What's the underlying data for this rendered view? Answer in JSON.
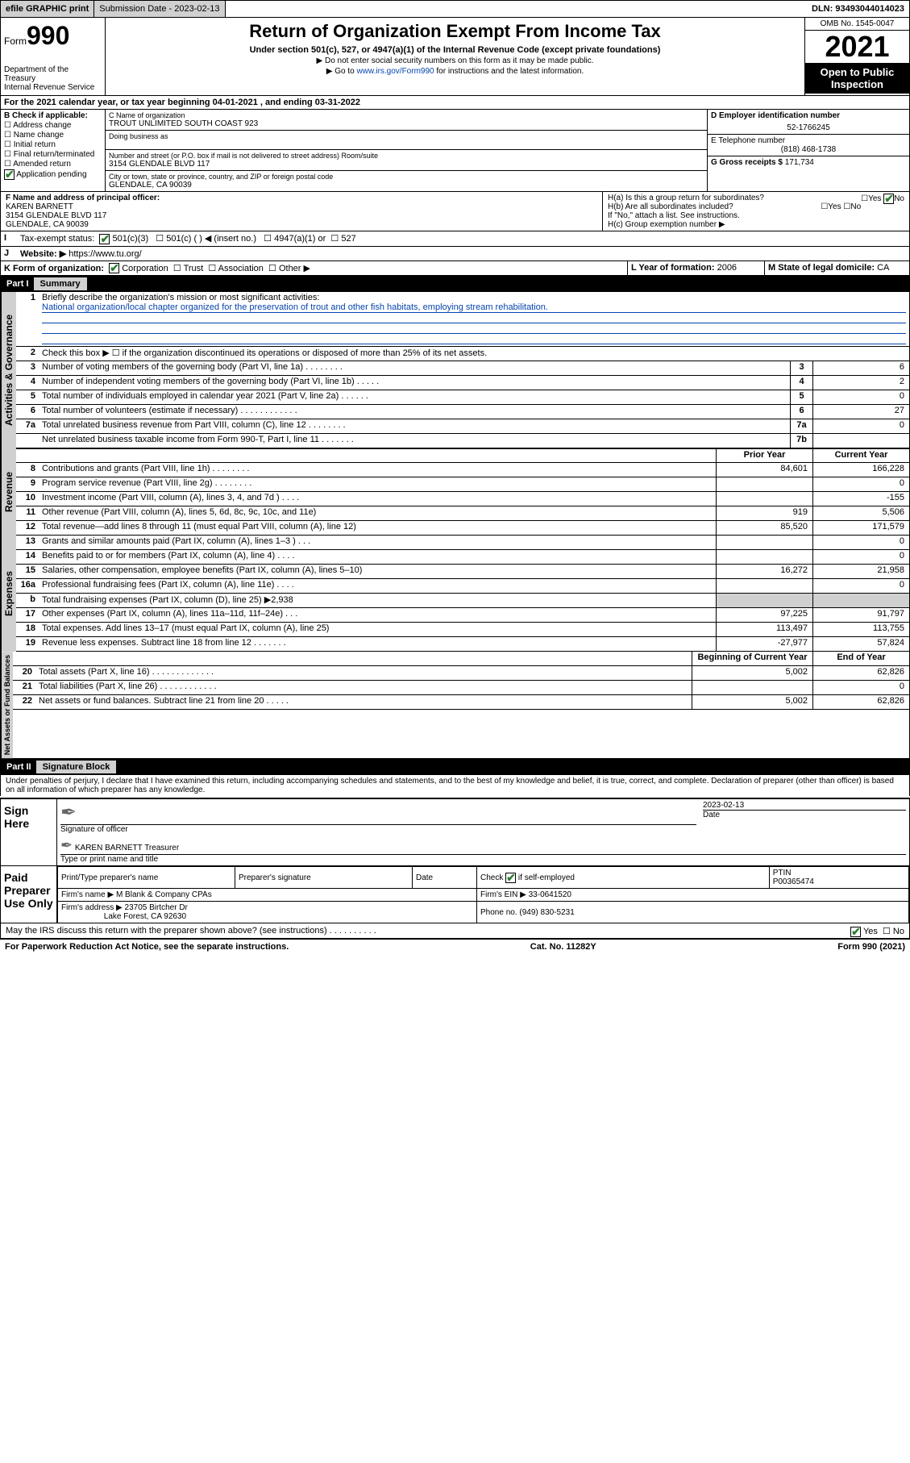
{
  "topbar": {
    "efile": "efile GRAPHIC print",
    "sub_label": "Submission Date - 2023-02-13",
    "dln": "DLN: 93493044014023"
  },
  "header": {
    "form_prefix": "Form",
    "form_number": "990",
    "dept": "Department of the Treasury",
    "irs": "Internal Revenue Service",
    "title": "Return of Organization Exempt From Income Tax",
    "subtitle": "Under section 501(c), 527, or 4947(a)(1) of the Internal Revenue Code (except private foundations)",
    "note1": "▶ Do not enter social security numbers on this form as it may be made public.",
    "note2_pre": "▶ Go to ",
    "note2_link": "www.irs.gov/Form990",
    "note2_post": " for instructions and the latest information.",
    "omb": "OMB No. 1545-0047",
    "year": "2021",
    "inspect": "Open to Public Inspection"
  },
  "taxyear": "For the 2021 calendar year, or tax year beginning 04-01-2021  , and ending 03-31-2022",
  "checkB": {
    "label": "B Check if applicable:",
    "opts": [
      "Address change",
      "Name change",
      "Initial return",
      "Final return/terminated",
      "Amended return",
      "Application pending"
    ]
  },
  "org": {
    "name_label": "C Name of organization",
    "name": "TROUT UNLIMITED SOUTH COAST 923",
    "dba_label": "Doing business as",
    "addr_label": "Number and street (or P.O. box if mail is not delivered to street address)      Room/suite",
    "addr": "3154 GLENDALE BLVD 117",
    "city_label": "City or town, state or province, country, and ZIP or foreign postal code",
    "city": "GLENDALE, CA  90039"
  },
  "right": {
    "ein_label": "D Employer identification number",
    "ein": "52-1766245",
    "phone_label": "E Telephone number",
    "phone": "(818) 468-1738",
    "gross_label": "G Gross receipts $",
    "gross": "171,734"
  },
  "officer": {
    "label": "F  Name and address of principal officer:",
    "name": "KAREN BARNETT",
    "addr1": "3154 GLENDALE BLVD 117",
    "addr2": "GLENDALE, CA  90039"
  },
  "h": {
    "a": "H(a)  Is this a group return for subordinates?",
    "b": "H(b)  Are all subordinates included?",
    "b_note": "If \"No,\" attach a list. See instructions.",
    "c": "H(c)  Group exemption number ▶"
  },
  "i": {
    "label": "Tax-exempt status:",
    "opt1": "501(c)(3)",
    "opt2": "501(c) (  ) ◀ (insert no.)",
    "opt3": "4947(a)(1) or",
    "opt4": "527"
  },
  "j": {
    "label": "Website: ▶",
    "url": "https://www.tu.org/"
  },
  "k": {
    "label": "K Form of organization:",
    "opts": [
      "Corporation",
      "Trust",
      "Association",
      "Other ▶"
    ],
    "l_label": "L Year of formation:",
    "l_val": "2006",
    "m_label": "M State of legal domicile:",
    "m_val": "CA"
  },
  "parts": {
    "p1": "Part I",
    "p1_title": "Summary",
    "p2": "Part II",
    "p2_title": "Signature Block"
  },
  "summary": {
    "l1_label": "Briefly describe the organization's mission or most significant activities:",
    "l1_text": "National organization/local chapter organized for the preservation of trout and other fish habitats, employing stream rehabilitation.",
    "l2": "Check this box ▶ ☐ if the organization discontinued its operations or disposed of more than 25% of its net assets."
  },
  "gov_lines": [
    {
      "n": "3",
      "d": "Number of voting members of the governing body (Part VI, line 1a)  .    .    .    .    .    .    .    .",
      "box": "3",
      "v": "6"
    },
    {
      "n": "4",
      "d": "Number of independent voting members of the governing body (Part VI, line 1b)  .    .    .    .    .",
      "box": "4",
      "v": "2"
    },
    {
      "n": "5",
      "d": "Total number of individuals employed in calendar year 2021 (Part V, line 2a)  .    .    .    .    .    .",
      "box": "5",
      "v": "0"
    },
    {
      "n": "6",
      "d": "Total number of volunteers (estimate if necessary)  .    .    .    .    .    .    .    .    .    .    .    .",
      "box": "6",
      "v": "27"
    },
    {
      "n": "7a",
      "d": "Total unrelated business revenue from Part VIII, column (C), line 12  .    .    .    .    .    .    .    .",
      "box": "7a",
      "v": "0"
    },
    {
      "n": "",
      "d": "Net unrelated business taxable income from Form 990-T, Part I, line 11  .    .    .    .    .    .    .",
      "box": "7b",
      "v": ""
    }
  ],
  "col_headers": {
    "prior": "Prior Year",
    "current": "Current Year",
    "boy": "Beginning of Current Year",
    "eoy": "End of Year"
  },
  "rev_lines": [
    {
      "n": "8",
      "d": "Contributions and grants (Part VIII, line 1h)  .    .    .    .    .    .    .    .",
      "p": "84,601",
      "c": "166,228"
    },
    {
      "n": "9",
      "d": "Program service revenue (Part VIII, line 2g)  .    .    .    .    .    .    .    .",
      "p": "",
      "c": "0"
    },
    {
      "n": "10",
      "d": "Investment income (Part VIII, column (A), lines 3, 4, and 7d )  .    .    .    .",
      "p": "",
      "c": "-155"
    },
    {
      "n": "11",
      "d": "Other revenue (Part VIII, column (A), lines 5, 6d, 8c, 9c, 10c, and 11e)",
      "p": "919",
      "c": "5,506"
    },
    {
      "n": "12",
      "d": "Total revenue—add lines 8 through 11 (must equal Part VIII, column (A), line 12)",
      "p": "85,520",
      "c": "171,579"
    }
  ],
  "exp_lines": [
    {
      "n": "13",
      "d": "Grants and similar amounts paid (Part IX, column (A), lines 1–3 )  .    .    .",
      "p": "",
      "c": "0"
    },
    {
      "n": "14",
      "d": "Benefits paid to or for members (Part IX, column (A), line 4)  .    .    .    .",
      "p": "",
      "c": "0"
    },
    {
      "n": "15",
      "d": "Salaries, other compensation, employee benefits (Part IX, column (A), lines 5–10)",
      "p": "16,272",
      "c": "21,958"
    },
    {
      "n": "16a",
      "d": "Professional fundraising fees (Part IX, column (A), line 11e)  .    .    .    .",
      "p": "",
      "c": "0"
    },
    {
      "n": "b",
      "d": "Total fundraising expenses (Part IX, column (D), line 25) ▶2,938",
      "p": "shade",
      "c": "shade"
    },
    {
      "n": "17",
      "d": "Other expenses (Part IX, column (A), lines 11a–11d, 11f–24e)  .    .    .",
      "p": "97,225",
      "c": "91,797"
    },
    {
      "n": "18",
      "d": "Total expenses. Add lines 13–17 (must equal Part IX, column (A), line 25)",
      "p": "113,497",
      "c": "113,755"
    },
    {
      "n": "19",
      "d": "Revenue less expenses. Subtract line 18 from line 12  .    .    .    .    .    .    .",
      "p": "-27,977",
      "c": "57,824"
    }
  ],
  "na_lines": [
    {
      "n": "20",
      "d": "Total assets (Part X, line 16)  .    .    .    .    .    .    .    .    .    .    .    .    .",
      "p": "5,002",
      "c": "62,826"
    },
    {
      "n": "21",
      "d": "Total liabilities (Part X, line 26)  .    .    .    .    .    .    .    .    .    .    .    .",
      "p": "",
      "c": "0"
    },
    {
      "n": "22",
      "d": "Net assets or fund balances. Subtract line 21 from line 20  .    .    .    .    .",
      "p": "5,002",
      "c": "62,826"
    }
  ],
  "sig": {
    "decl": "Under penalties of perjury, I declare that I have examined this return, including accompanying schedules and statements, and to the best of my knowledge and belief, it is true, correct, and complete. Declaration of preparer (other than officer) is based on all information of which preparer has any knowledge.",
    "sign_here": "Sign Here",
    "sig_officer": "Signature of officer",
    "date_label": "Date",
    "date": "2023-02-13",
    "name_title": "KAREN BARNETT Treasurer",
    "type_label": "Type or print name and title",
    "paid": "Paid Preparer Use Only",
    "prep_name_label": "Print/Type preparer's name",
    "prep_sig_label": "Preparer's signature",
    "check_label": "Check",
    "self_emp": "if self-employed",
    "ptin_label": "PTIN",
    "ptin": "P00365474",
    "firm_name_label": "Firm's name   ▶",
    "firm_name": "M Blank & Company CPAs",
    "firm_ein_label": "Firm's EIN ▶",
    "firm_ein": "33-0641520",
    "firm_addr_label": "Firm's address ▶",
    "firm_addr1": "23705 Birtcher Dr",
    "firm_addr2": "Lake Forest, CA  92630",
    "phone_label": "Phone no.",
    "phone": "(949) 830-5231",
    "discuss": "May the IRS discuss this return with the preparer shown above? (see instructions)  .    .    .    .    .    .    .    .    .    ."
  },
  "footer": {
    "pra": "For Paperwork Reduction Act Notice, see the separate instructions.",
    "cat": "Cat. No. 11282Y",
    "form": "Form 990 (2021)"
  },
  "tabs": {
    "gov": "Activities & Governance",
    "rev": "Revenue",
    "exp": "Expenses",
    "na": "Net Assets or Fund Balances"
  },
  "colors": {
    "link": "#0645ad",
    "check": "#2e7d32",
    "shade": "#d0d0d0"
  }
}
